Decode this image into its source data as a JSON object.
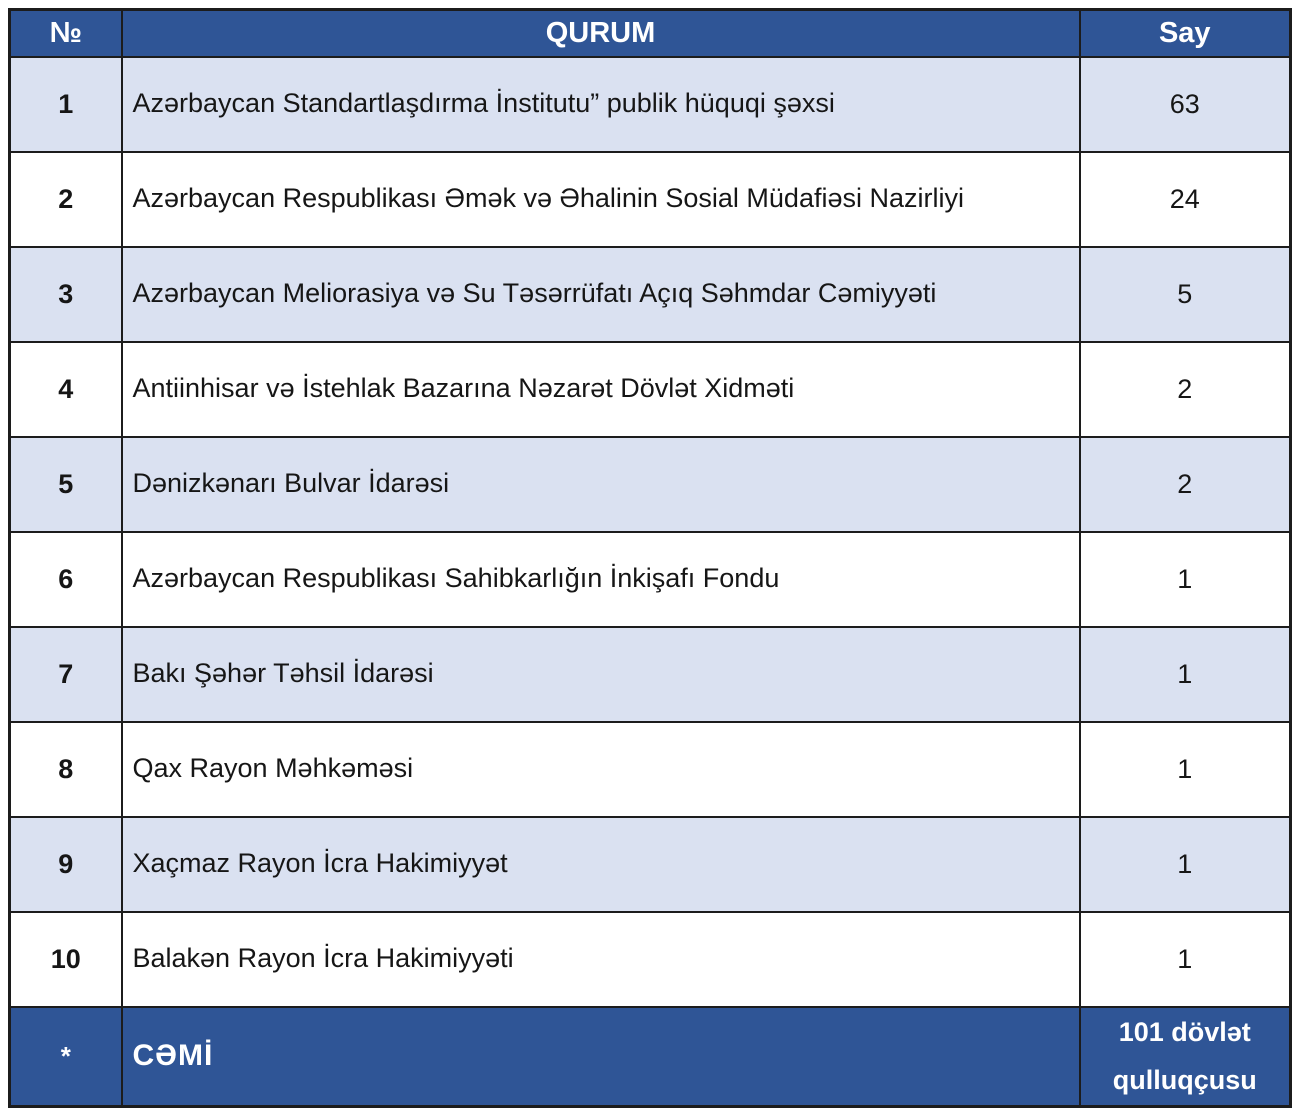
{
  "colors": {
    "header-bg": "#2F5596",
    "footer-bg": "#2F5596",
    "row-alt-bg": "#DAE1F1",
    "row-bg": "#FFFFFF",
    "border-color": "#1C1C1C",
    "header-text": "#FFFFFF",
    "body-text": "#161616",
    "page-bg": "#FFFFFF"
  },
  "table": {
    "columns": [
      {
        "label": "№"
      },
      {
        "label": "QURUM"
      },
      {
        "label": "Say"
      }
    ],
    "rows": [
      {
        "num": "1",
        "qurum": "Azərbaycan Standartlaşdırma İnstitutu” publik hüquqi şəxsi",
        "say": "63"
      },
      {
        "num": "2",
        "qurum": "Azərbaycan Respublikası Əmək və Əhalinin Sosial Müdafiəsi Nazirliyi",
        "say": "24"
      },
      {
        "num": "3",
        "qurum": "Azərbaycan Meliorasiya və Su Təsərrüfatı Açıq Səhmdar Cəmiyyəti",
        "say": "5"
      },
      {
        "num": "4",
        "qurum": "Antiinhisar və İstehlak Bazarına Nəzarət Dövlət Xidməti",
        "say": "2"
      },
      {
        "num": "5",
        "qurum": "Dənizkənarı Bulvar İdarəsi",
        "say": "2"
      },
      {
        "num": "6",
        "qurum": "Azərbaycan Respublikası Sahibkarlığın İnkişafı Fondu",
        "say": "1"
      },
      {
        "num": "7",
        "qurum": "Bakı Şəhər Təhsil İdarəsi",
        "say": "1"
      },
      {
        "num": "8",
        "qurum": "Qax Rayon Məhkəməsi",
        "say": "1"
      },
      {
        "num": "9",
        "qurum": "Xaçmaz Rayon İcra Hakimiyyət",
        "say": "1"
      },
      {
        "num": "10",
        "qurum": "Balakən Rayon İcra Hakimiyyəti",
        "say": "1"
      }
    ],
    "footer": {
      "num": "*",
      "qurum": "CƏMİ",
      "say": "101 dövlət qulluqçusu"
    }
  }
}
